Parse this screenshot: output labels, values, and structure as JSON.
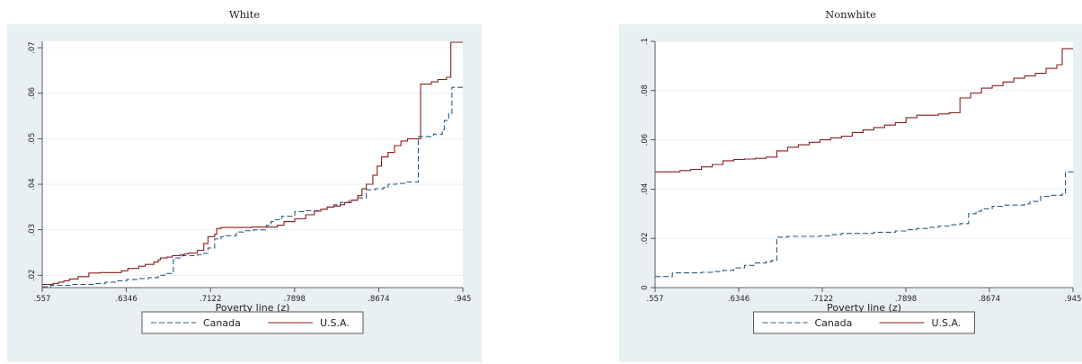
{
  "chart_data": [
    {
      "type": "line",
      "title": "White",
      "xlabel": "Poverty line (z)",
      "ylabel": "",
      "x_ticks": [
        ".557",
        ".6346",
        ".7122",
        ".7898",
        ".8674",
        ".945"
      ],
      "y_ticks": [
        ".02",
        ".03",
        ".04",
        ".05",
        ".06",
        ".07"
      ],
      "xlim": [
        0.557,
        0.945
      ],
      "ylim": [
        0.0173,
        0.0714
      ],
      "grid": true,
      "legend": "bottom",
      "series": [
        {
          "name": "Canada",
          "style": "dashed",
          "color": "#2b5b84",
          "x": [
            0.557,
            0.565,
            0.585,
            0.605,
            0.615,
            0.625,
            0.635,
            0.645,
            0.655,
            0.664,
            0.67,
            0.678,
            0.684,
            0.686,
            0.69,
            0.7,
            0.706,
            0.71,
            0.716,
            0.722,
            0.726,
            0.736,
            0.744,
            0.752,
            0.764,
            0.768,
            0.772,
            0.778,
            0.79,
            0.8,
            0.812,
            0.818,
            0.826,
            0.832,
            0.84,
            0.848,
            0.856,
            0.864,
            0.872,
            0.876,
            0.884,
            0.892,
            0.9,
            0.904,
            0.912,
            0.918,
            0.926,
            0.928,
            0.932,
            0.935,
            0.945
          ],
          "y": [
            0.0175,
            0.0178,
            0.018,
            0.0182,
            0.0185,
            0.0188,
            0.0191,
            0.0193,
            0.0195,
            0.02,
            0.0204,
            0.0238,
            0.024,
            0.0243,
            0.0243,
            0.0245,
            0.0248,
            0.026,
            0.028,
            0.0285,
            0.0287,
            0.0295,
            0.0298,
            0.03,
            0.031,
            0.0318,
            0.0322,
            0.033,
            0.034,
            0.0342,
            0.0345,
            0.035,
            0.0355,
            0.036,
            0.0365,
            0.037,
            0.0388,
            0.039,
            0.0393,
            0.04,
            0.0402,
            0.0405,
            0.0405,
            0.0505,
            0.0505,
            0.051,
            0.052,
            0.054,
            0.0555,
            0.0613,
            0.0613
          ]
        },
        {
          "name": "U.S.A.",
          "style": "solid",
          "color": "#8b1c1c",
          "x": [
            0.557,
            0.56,
            0.567,
            0.572,
            0.577,
            0.582,
            0.59,
            0.6,
            0.61,
            0.63,
            0.636,
            0.646,
            0.652,
            0.66,
            0.664,
            0.666,
            0.672,
            0.677,
            0.684,
            0.688,
            0.692,
            0.7,
            0.706,
            0.71,
            0.716,
            0.718,
            0.722,
            0.73,
            0.74,
            0.75,
            0.766,
            0.774,
            0.78,
            0.79,
            0.8,
            0.808,
            0.814,
            0.82,
            0.826,
            0.832,
            0.836,
            0.842,
            0.848,
            0.852,
            0.856,
            0.862,
            0.866,
            0.87,
            0.876,
            0.882,
            0.888,
            0.894,
            0.902,
            0.906,
            0.91,
            0.916,
            0.922,
            0.93,
            0.934,
            0.945
          ],
          "y": [
            0.018,
            0.018,
            0.0182,
            0.0185,
            0.0188,
            0.0192,
            0.0197,
            0.0205,
            0.0206,
            0.021,
            0.0215,
            0.022,
            0.0224,
            0.0229,
            0.0234,
            0.0238,
            0.024,
            0.0243,
            0.0245,
            0.0247,
            0.0249,
            0.0255,
            0.027,
            0.0285,
            0.029,
            0.0303,
            0.0305,
            0.0305,
            0.0305,
            0.0306,
            0.0306,
            0.031,
            0.0318,
            0.0324,
            0.0333,
            0.0341,
            0.0345,
            0.035,
            0.0352,
            0.0355,
            0.036,
            0.0365,
            0.0375,
            0.039,
            0.04,
            0.042,
            0.044,
            0.046,
            0.047,
            0.0485,
            0.0495,
            0.05,
            0.05,
            0.062,
            0.062,
            0.0625,
            0.063,
            0.0635,
            0.0712,
            0.0712
          ]
        }
      ]
    },
    {
      "type": "line",
      "title": "Nonwhite",
      "xlabel": "Poverty line (z)",
      "ylabel": "",
      "x_ticks": [
        ".557",
        ".6346",
        ".7122",
        ".7898",
        ".8674",
        ".945"
      ],
      "y_ticks": [
        "0",
        ".02",
        ".04",
        ".06",
        ".08",
        ".1"
      ],
      "xlim": [
        0.557,
        0.945
      ],
      "ylim": [
        0.0,
        0.1
      ],
      "grid": true,
      "legend": "bottom",
      "series": [
        {
          "name": "Canada",
          "style": "dashed",
          "color": "#2b5b84",
          "x": [
            0.557,
            0.572,
            0.573,
            0.59,
            0.6,
            0.61,
            0.62,
            0.63,
            0.64,
            0.65,
            0.66,
            0.665,
            0.67,
            0.68,
            0.71,
            0.72,
            0.73,
            0.76,
            0.78,
            0.79,
            0.8,
            0.81,
            0.82,
            0.83,
            0.84,
            0.848,
            0.855,
            0.86,
            0.87,
            0.88,
            0.89,
            0.9,
            0.905,
            0.915,
            0.925,
            0.935,
            0.938,
            0.945
          ],
          "y": [
            0.0045,
            0.0045,
            0.006,
            0.006,
            0.0062,
            0.0065,
            0.007,
            0.008,
            0.009,
            0.01,
            0.0105,
            0.011,
            0.0205,
            0.0208,
            0.021,
            0.0215,
            0.022,
            0.0225,
            0.023,
            0.0235,
            0.024,
            0.0245,
            0.025,
            0.0255,
            0.026,
            0.03,
            0.031,
            0.032,
            0.033,
            0.0335,
            0.0335,
            0.034,
            0.035,
            0.037,
            0.0375,
            0.038,
            0.047,
            0.0475
          ]
        },
        {
          "name": "U.S.A.",
          "style": "solid",
          "color": "#8b1c1c",
          "x": [
            0.557,
            0.57,
            0.58,
            0.59,
            0.6,
            0.61,
            0.62,
            0.63,
            0.64,
            0.65,
            0.66,
            0.67,
            0.68,
            0.69,
            0.7,
            0.71,
            0.72,
            0.73,
            0.74,
            0.75,
            0.76,
            0.77,
            0.78,
            0.79,
            0.8,
            0.81,
            0.82,
            0.83,
            0.84,
            0.85,
            0.86,
            0.87,
            0.88,
            0.89,
            0.9,
            0.91,
            0.92,
            0.93,
            0.935,
            0.945
          ],
          "y": [
            0.047,
            0.047,
            0.0475,
            0.048,
            0.049,
            0.05,
            0.0515,
            0.052,
            0.0522,
            0.0525,
            0.053,
            0.0555,
            0.057,
            0.058,
            0.059,
            0.06,
            0.0608,
            0.0615,
            0.063,
            0.064,
            0.065,
            0.066,
            0.067,
            0.069,
            0.07,
            0.07,
            0.0705,
            0.071,
            0.077,
            0.079,
            0.081,
            0.082,
            0.0835,
            0.085,
            0.086,
            0.087,
            0.089,
            0.0905,
            0.097,
            0.097
          ]
        }
      ]
    }
  ]
}
